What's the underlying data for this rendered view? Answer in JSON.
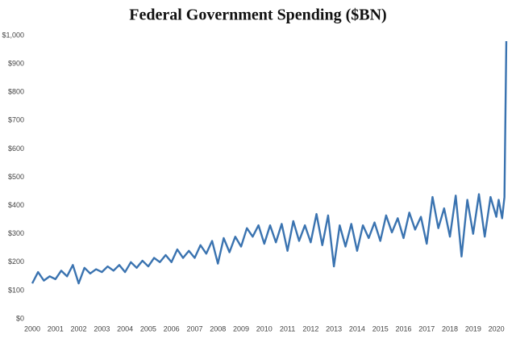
{
  "chart_data": {
    "type": "line",
    "title": "Federal Government Spending ($BN)",
    "x": [
      2000,
      2000.25,
      2000.5,
      2000.75,
      2001,
      2001.25,
      2001.5,
      2001.75,
      2002,
      2002.25,
      2002.5,
      2002.75,
      2003,
      2003.25,
      2003.5,
      2003.75,
      2004,
      2004.25,
      2004.5,
      2004.75,
      2005,
      2005.25,
      2005.5,
      2005.75,
      2006,
      2006.25,
      2006.5,
      2006.75,
      2007,
      2007.25,
      2007.5,
      2007.75,
      2008,
      2008.25,
      2008.5,
      2008.75,
      2009,
      2009.25,
      2009.5,
      2009.75,
      2010,
      2010.25,
      2010.5,
      2010.75,
      2011,
      2011.25,
      2011.5,
      2011.75,
      2012,
      2012.25,
      2012.5,
      2012.75,
      2013,
      2013.25,
      2013.5,
      2013.75,
      2014,
      2014.25,
      2014.5,
      2014.75,
      2015,
      2015.25,
      2015.5,
      2015.75,
      2016,
      2016.25,
      2016.5,
      2016.75,
      2017,
      2017.25,
      2017.5,
      2017.75,
      2018,
      2018.25,
      2018.5,
      2018.75,
      2019,
      2019.25,
      2019.5,
      2019.75,
      2020,
      2020.1,
      2020.25,
      2020.35,
      2020.43
    ],
    "series": [
      {
        "name": "Federal Government Spending",
        "color": "#3a73b0",
        "values": [
          125,
          165,
          135,
          150,
          140,
          170,
          150,
          190,
          125,
          180,
          160,
          175,
          165,
          185,
          170,
          190,
          165,
          200,
          180,
          205,
          185,
          215,
          200,
          225,
          200,
          245,
          215,
          240,
          215,
          260,
          230,
          275,
          195,
          285,
          235,
          290,
          255,
          320,
          290,
          330,
          265,
          330,
          270,
          335,
          240,
          345,
          275,
          330,
          270,
          370,
          260,
          365,
          185,
          330,
          255,
          335,
          240,
          330,
          285,
          340,
          275,
          365,
          305,
          355,
          285,
          375,
          315,
          360,
          265,
          430,
          320,
          390,
          290,
          435,
          220,
          420,
          300,
          440,
          290,
          430,
          360,
          420,
          355,
          430,
          980
        ]
      }
    ],
    "xlim": [
      2000,
      2020.5
    ],
    "ylim": [
      0,
      1000
    ],
    "xticks": [
      2000,
      2001,
      2002,
      2003,
      2004,
      2005,
      2006,
      2007,
      2008,
      2009,
      2010,
      2011,
      2012,
      2013,
      2014,
      2015,
      2016,
      2017,
      2018,
      2019,
      2020
    ],
    "yticks": [
      {
        "value": 0,
        "label": "$0"
      },
      {
        "value": 100,
        "label": "$100"
      },
      {
        "value": 200,
        "label": "$200"
      },
      {
        "value": 300,
        "label": "$300"
      },
      {
        "value": 400,
        "label": "$400"
      },
      {
        "value": 500,
        "label": "$500"
      },
      {
        "value": 600,
        "label": "$600"
      },
      {
        "value": 700,
        "label": "$700"
      },
      {
        "value": 800,
        "label": "$800"
      },
      {
        "value": 900,
        "label": "$900"
      },
      {
        "value": 1000,
        "label": "$1,000"
      }
    ],
    "grid": false
  }
}
